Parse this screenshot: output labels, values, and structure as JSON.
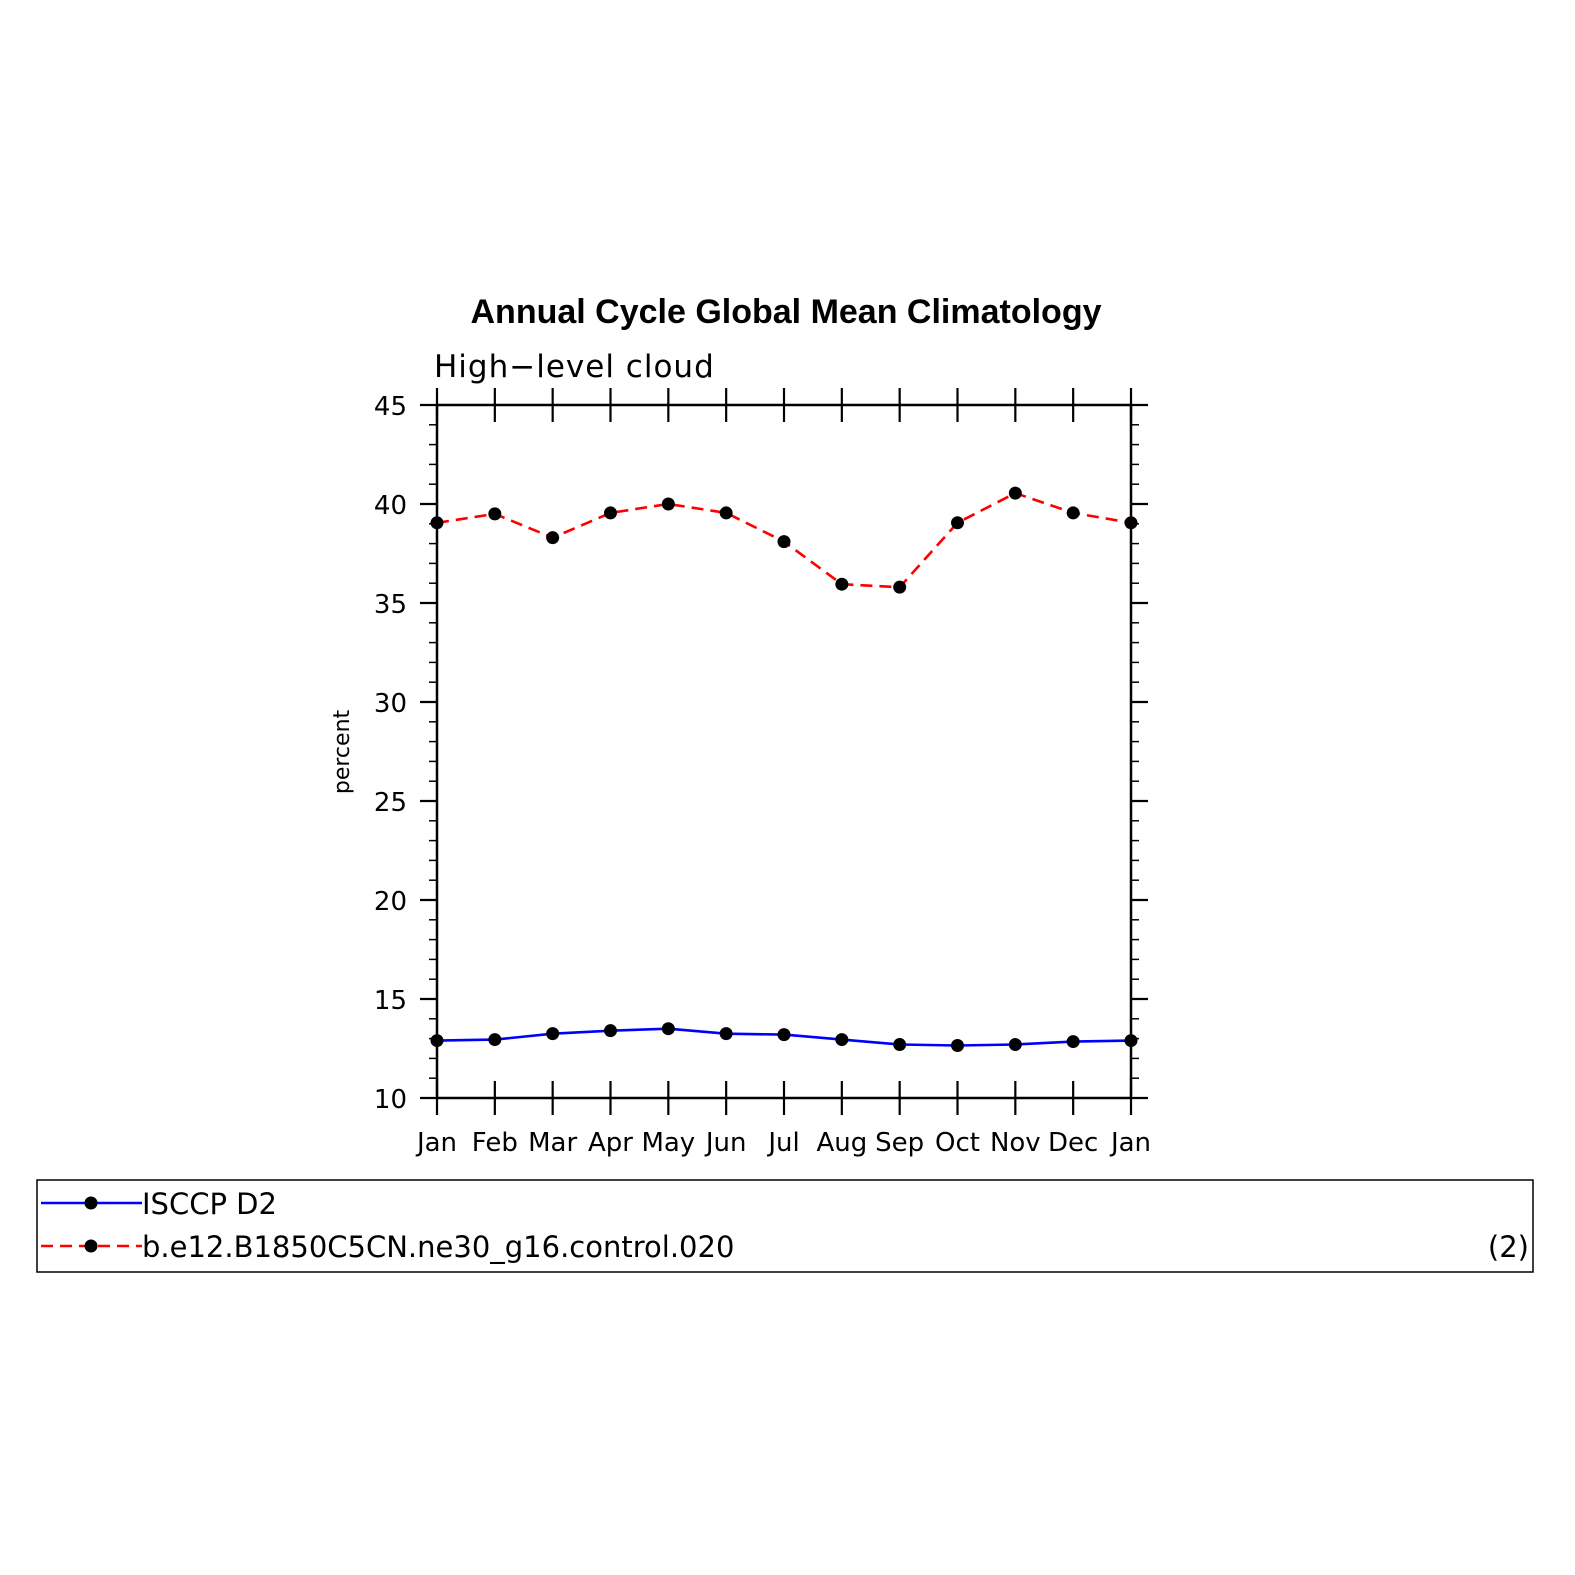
{
  "chart_data": {
    "type": "line",
    "title": "Annual Cycle Global Mean Climatology",
    "subtitle": "High−level cloud",
    "ylabel": "percent",
    "xlabel": "",
    "ylim": [
      10,
      45
    ],
    "y_major_ticks": [
      10,
      15,
      20,
      25,
      30,
      35,
      40,
      45
    ],
    "y_minor_step": 1,
    "categories": [
      "Jan",
      "Feb",
      "Mar",
      "Apr",
      "May",
      "Jun",
      "Jul",
      "Aug",
      "Sep",
      "Oct",
      "Nov",
      "Dec",
      "Jan"
    ],
    "series": [
      {
        "name": "ISCCP D2",
        "color": "#0000ff",
        "dash": "solid",
        "marker": "dot",
        "values": [
          12.9,
          12.95,
          13.25,
          13.4,
          13.5,
          13.25,
          13.2,
          12.95,
          12.7,
          12.65,
          12.7,
          12.85,
          12.9
        ]
      },
      {
        "name": "b.e12.B1850C5CN.ne30_g16.control.020",
        "color": "#ff0000",
        "dash": "dashed",
        "marker": "dot",
        "values": [
          39.05,
          39.5,
          38.3,
          39.55,
          40.0,
          39.55,
          38.1,
          35.95,
          35.8,
          39.05,
          40.55,
          39.55,
          39.05
        ]
      }
    ],
    "legend": {
      "position": "bottom",
      "label_right": "(2)"
    }
  }
}
